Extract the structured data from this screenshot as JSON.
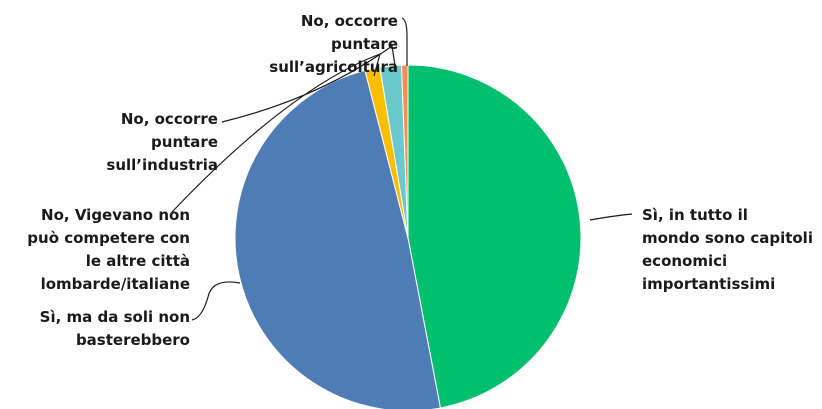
{
  "chart_data": {
    "type": "pie",
    "slices": [
      {
        "label_lines": [
          "Sì, in tutto il",
          "mondo sono capitoli",
          "economici",
          "importantissimi"
        ],
        "value": 47,
        "color": "#00bf6f"
      },
      {
        "label_lines": [
          "Sì, ma da soli non",
          "basterebbero"
        ],
        "value": 49,
        "color": "#507cb6"
      },
      {
        "label_lines": [
          "No, Vigevano non",
          "può competere con",
          "le altre città",
          "lombarde/italiane"
        ],
        "value": 1.4,
        "color": "#f9be00"
      },
      {
        "label_lines": [
          "No, occorre",
          "puntare",
          "sull’industria"
        ],
        "value": 2,
        "color": "#6bc8cd"
      },
      {
        "label_lines": [
          "No, occorre",
          "puntare",
          "sull’agricoltura"
        ],
        "value": 0.6,
        "color": "#ff8b4f"
      }
    ]
  }
}
